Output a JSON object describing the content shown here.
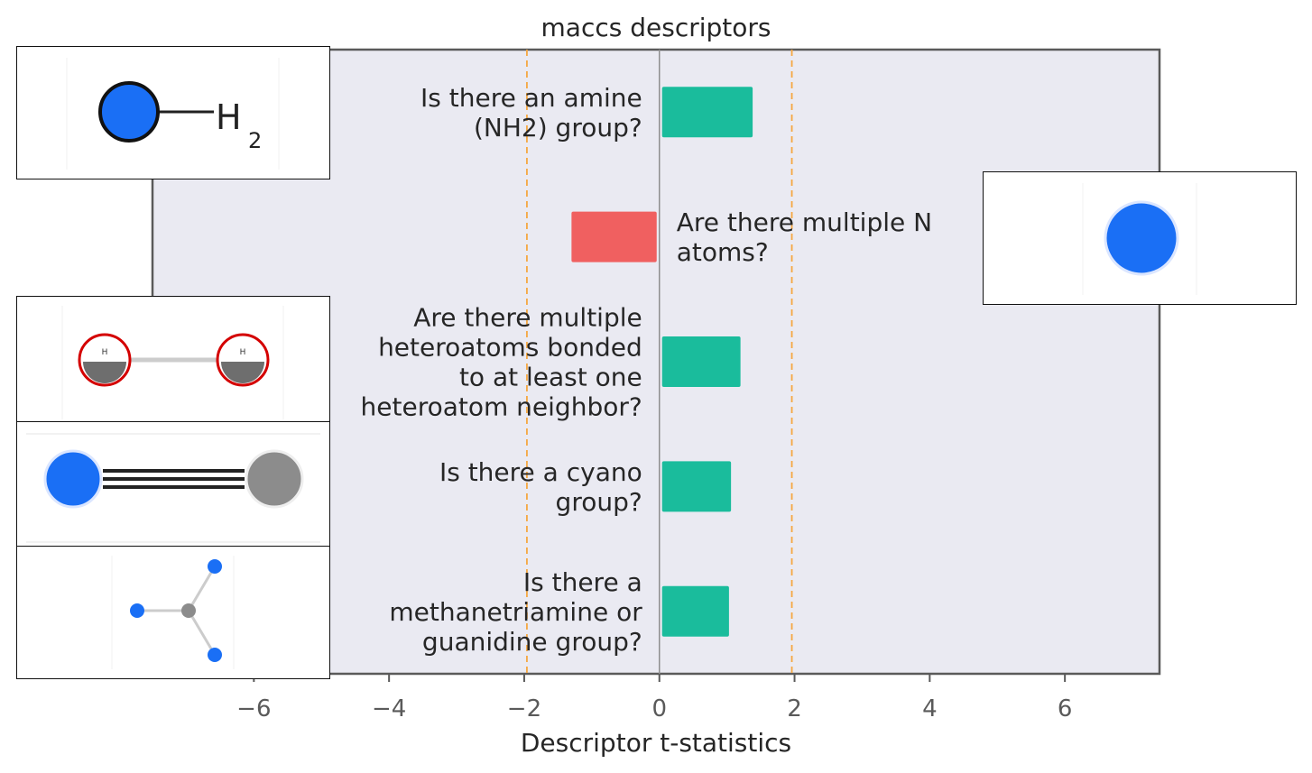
{
  "chart_data": {
    "type": "bar",
    "orientation": "horizontal",
    "title": "maccs descriptors",
    "xlabel": "Descriptor t-statistics",
    "ylabel": "",
    "xlim": [
      -7.5,
      7.4
    ],
    "xticks": [
      -6,
      -4,
      -2,
      0,
      2,
      4,
      6
    ],
    "xtick_labels": [
      "−6",
      "−4",
      "−2",
      "0",
      "2",
      "4",
      "6"
    ],
    "threshold_lines": [
      -1.96,
      1.96
    ],
    "grid": false,
    "bars": [
      {
        "label": "Is there an amine\n(NH2) group?",
        "value": 1.38,
        "color": "#1abc9c",
        "molecule": "amine-nh2"
      },
      {
        "label": "Are there multiple N\natoms?",
        "value": -1.3,
        "color": "#f06060",
        "molecule": "nitrogen-atom"
      },
      {
        "label": "Are there multiple\nheteroatoms bonded\nto at least one\nheteroatom neighbor?",
        "value": 1.2,
        "color": "#1abc9c",
        "molecule": "hydrogen-pair"
      },
      {
        "label": "Is there a cyano\ngroup?",
        "value": 1.06,
        "color": "#1abc9c",
        "molecule": "cyano"
      },
      {
        "label": "Is there a\nmethanetriamine or\nguanidine group?",
        "value": 1.03,
        "color": "#1abc9c",
        "molecule": "methanetriamine"
      }
    ]
  },
  "molecules": {
    "amine": {
      "subscript_main": "H",
      "subscript_num": "2"
    },
    "hydrogen": {
      "atom_label": "H"
    }
  }
}
